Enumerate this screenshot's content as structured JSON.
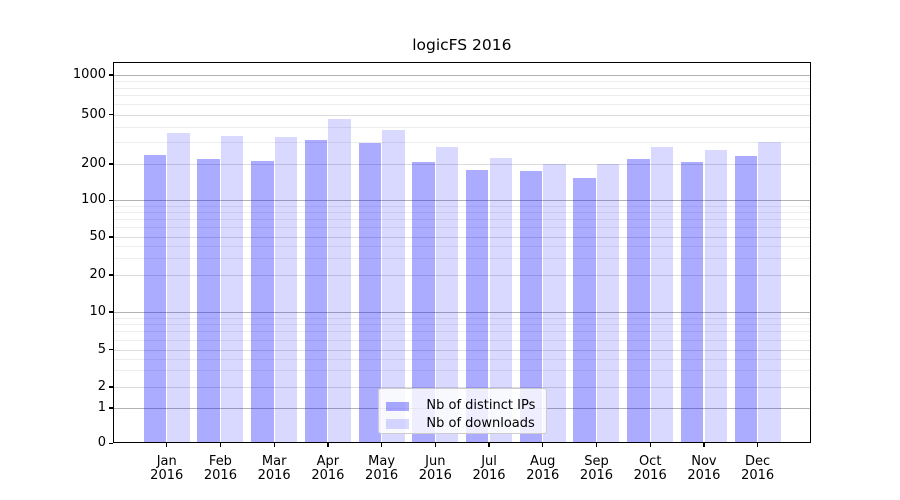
{
  "title": "logicFS 2016",
  "chart_data": {
    "type": "bar",
    "title": "logicFS 2016",
    "categories": [
      "Jan 2016",
      "Feb 2016",
      "Mar 2016",
      "Apr 2016",
      "May 2016",
      "Jun 2016",
      "Jul 2016",
      "Aug 2016",
      "Sep 2016",
      "Oct 2016",
      "Nov 2016",
      "Dec 2016"
    ],
    "series": [
      {
        "name": "Nb of distinct IPs",
        "color": "rgba(0,0,255,0.33)",
        "flat_hex": "#aaaaff",
        "values": [
          235,
          218,
          210,
          310,
          293,
          209,
          180,
          175,
          154,
          220,
          209,
          232
        ]
      },
      {
        "name": "Nb of downloads",
        "color": "rgba(0,0,255,0.15)",
        "flat_hex": "#d9d9ff",
        "values": [
          353,
          338,
          331,
          457,
          375,
          276,
          225,
          201,
          201,
          276,
          259,
          302
        ]
      }
    ],
    "xlabel": "",
    "ylabel": "",
    "yscale": "log-like (1-2-5 tick sequence) with 0 baseline",
    "yticks": [
      0,
      1,
      2,
      5,
      10,
      20,
      50,
      100,
      200,
      500,
      1000
    ],
    "ytick_labels": [
      "0",
      "1",
      "2",
      "5",
      "10",
      "20",
      "50",
      "100",
      "200",
      "500",
      "1000"
    ],
    "ylim": [
      0,
      1500
    ],
    "grid": true,
    "legend_position": "lower center"
  },
  "colors": {
    "bar_dark": "#aaaaff",
    "bar_light": "#d9d9ff",
    "grid_major": "#b3b3b3",
    "grid_minor": "#ededed",
    "legend_border": "#cccccc",
    "axis": "#000000"
  }
}
